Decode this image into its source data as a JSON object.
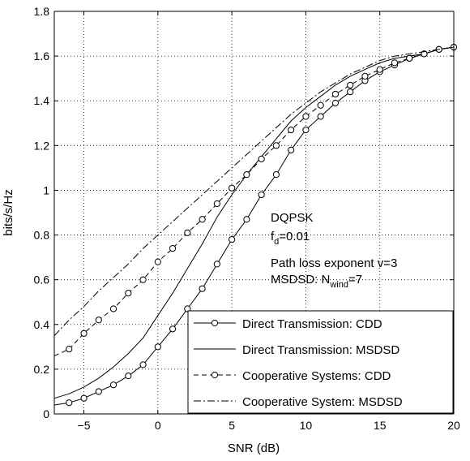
{
  "chart_data": {
    "type": "line",
    "xlabel": "SNR (dB)",
    "ylabel": "bits/s/Hz",
    "xlim": [
      -7,
      20
    ],
    "ylim": [
      0,
      1.8
    ],
    "xticks": [
      -5,
      0,
      5,
      10,
      15,
      20
    ],
    "yticks": [
      0,
      0.2,
      0.4,
      0.6,
      0.8,
      1,
      1.2,
      1.4,
      1.6,
      1.8
    ],
    "xtick_labels": [
      "−5",
      "0",
      "5",
      "10",
      "15",
      "20"
    ],
    "ytick_labels": [
      "0",
      "0.2",
      "0.4",
      "0.6",
      "0.8",
      "1",
      "1.2",
      "1.4",
      "1.6",
      "1.8"
    ],
    "grid": true,
    "legend_position": "bottom-right",
    "annotation": {
      "line1": "DQPSK",
      "line2_main": "f",
      "line2_sub": "d",
      "line2_rest": "=0.01",
      "line3": "Path loss exponent v=3",
      "line4_main": "MSDSD: N",
      "line4_sub": "wind",
      "line4_rest": "=7"
    },
    "series": [
      {
        "name": "Direct Transmission: CDD",
        "style": "solid-circle",
        "x": [
          -7,
          -6,
          -5,
          -4,
          -3,
          -2,
          -1,
          0,
          1,
          2,
          3,
          4,
          5,
          6,
          7,
          8,
          9,
          10,
          11,
          12,
          13,
          14,
          15,
          16,
          17,
          18,
          19,
          20
        ],
        "y": [
          0.04,
          0.05,
          0.07,
          0.1,
          0.13,
          0.17,
          0.22,
          0.3,
          0.38,
          0.47,
          0.56,
          0.67,
          0.78,
          0.87,
          0.98,
          1.07,
          1.18,
          1.27,
          1.33,
          1.39,
          1.44,
          1.49,
          1.53,
          1.56,
          1.59,
          1.61,
          1.63,
          1.64
        ]
      },
      {
        "name": "Direct Transmission: MSDSD",
        "style": "solid",
        "x": [
          -7,
          -6,
          -5,
          -4,
          -3,
          -2,
          -1,
          0,
          1,
          2,
          3,
          4,
          5,
          6,
          7,
          8,
          9,
          10,
          11,
          12,
          13,
          14,
          15,
          16,
          17,
          18,
          19,
          20
        ],
        "y": [
          0.07,
          0.09,
          0.12,
          0.16,
          0.21,
          0.27,
          0.34,
          0.44,
          0.54,
          0.65,
          0.76,
          0.88,
          0.98,
          1.07,
          1.15,
          1.23,
          1.31,
          1.37,
          1.42,
          1.47,
          1.51,
          1.54,
          1.57,
          1.59,
          1.6,
          1.61,
          1.63,
          1.64
        ]
      },
      {
        "name": "Cooperative Systems: CDD",
        "style": "dashed-circle",
        "x": [
          -7,
          -6,
          -5,
          -4,
          -3,
          -2,
          -1,
          0,
          1,
          2,
          3,
          4,
          5,
          6,
          7,
          8,
          9,
          10,
          11,
          12,
          13,
          14,
          15,
          16,
          17,
          18,
          19,
          20
        ],
        "y": [
          0.26,
          0.29,
          0.36,
          0.42,
          0.47,
          0.54,
          0.6,
          0.68,
          0.74,
          0.81,
          0.87,
          0.94,
          1.01,
          1.07,
          1.14,
          1.2,
          1.27,
          1.33,
          1.38,
          1.43,
          1.47,
          1.51,
          1.54,
          1.57,
          1.59,
          1.61,
          1.63,
          1.64
        ]
      },
      {
        "name": "Cooperative System: MSDSD",
        "style": "dashdot",
        "x": [
          -7,
          -6,
          -5,
          -4,
          -3,
          -2,
          -1,
          0,
          1,
          2,
          3,
          4,
          5,
          6,
          7,
          8,
          9,
          10,
          11,
          12,
          13,
          14,
          15,
          16,
          17,
          18,
          19,
          20
        ],
        "y": [
          0.35,
          0.42,
          0.48,
          0.55,
          0.61,
          0.67,
          0.74,
          0.8,
          0.86,
          0.92,
          0.98,
          1.04,
          1.1,
          1.16,
          1.22,
          1.28,
          1.34,
          1.39,
          1.44,
          1.48,
          1.52,
          1.55,
          1.58,
          1.6,
          1.61,
          1.62,
          1.63,
          1.64
        ]
      }
    ]
  }
}
